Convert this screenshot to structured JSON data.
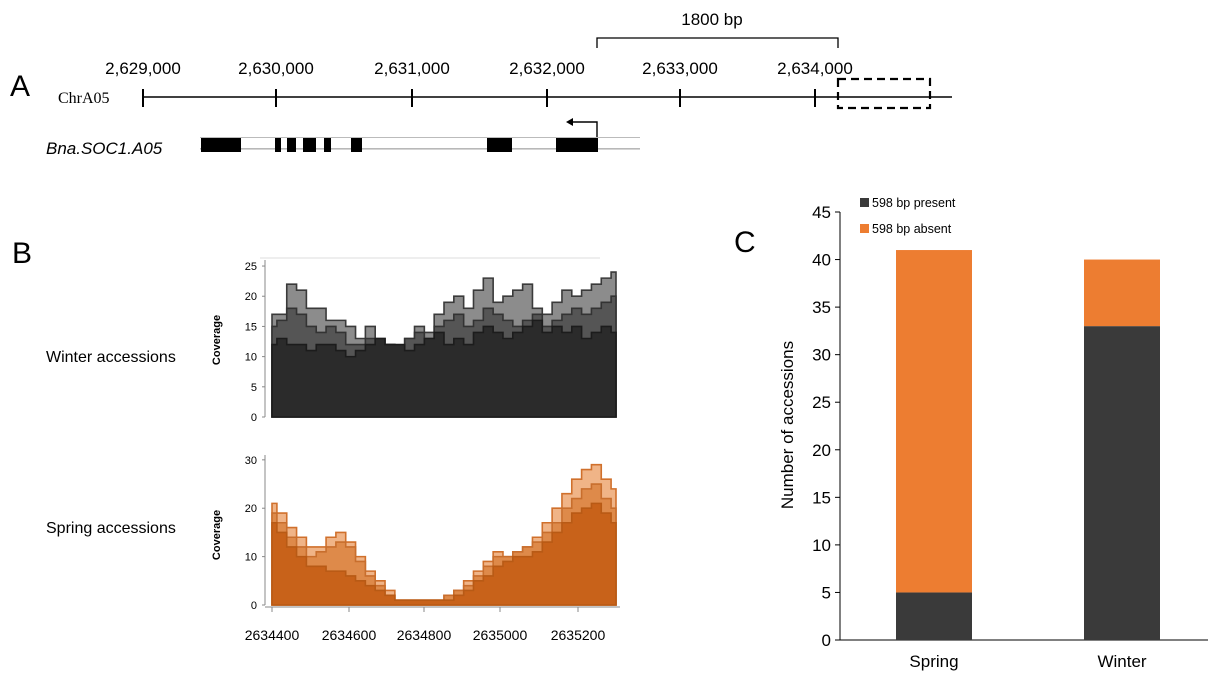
{
  "panel_a": {
    "letter": "A",
    "chromosome": "ChrA05",
    "scale_bar_label": "1800 bp",
    "ticks": [
      "2,629,000",
      "2,630,000",
      "2,631,000",
      "2,632,000",
      "2,633,000",
      "2,634,000"
    ],
    "gene_name": "Bna.SOC1.A05",
    "gene_strand": "reverse"
  },
  "panel_b": {
    "letter": "B",
    "winter_label": "Winter accessions",
    "spring_label": "Spring accessions",
    "x_ticks": [
      "2634400",
      "2634600",
      "2634800",
      "2635000",
      "2635200"
    ],
    "winter": {
      "ylabel": "Coverage",
      "yticks": [
        "0",
        "5",
        "10",
        "15",
        "20",
        "25"
      ],
      "ylim": [
        0,
        26
      ],
      "color": "#2b2b2b",
      "series": [
        {
          "values": [
            12,
            13,
            12,
            12,
            11,
            12,
            12,
            11,
            10,
            11,
            12,
            13,
            12,
            12,
            11,
            12,
            13,
            14,
            12,
            13,
            12,
            14,
            15,
            14,
            13,
            14,
            15,
            16,
            14,
            15,
            14,
            15,
            13,
            14,
            15,
            14
          ]
        },
        {
          "values": [
            15,
            16,
            18,
            17,
            15,
            14,
            15,
            14,
            12,
            12,
            13,
            12,
            12,
            11,
            13,
            14,
            13,
            15,
            16,
            17,
            15,
            16,
            18,
            17,
            16,
            15,
            16,
            17,
            15,
            16,
            17,
            18,
            17,
            18,
            19,
            20
          ]
        },
        {
          "values": [
            17,
            17,
            22,
            21,
            18,
            18,
            16,
            16,
            15,
            13,
            15,
            13,
            12,
            10,
            13,
            15,
            14,
            17,
            19,
            20,
            18,
            21,
            23,
            19,
            20,
            21,
            22,
            18,
            17,
            19,
            21,
            20,
            21,
            22,
            23,
            24
          ]
        }
      ]
    },
    "spring": {
      "ylabel": "Coverage",
      "yticks": [
        "0",
        "10",
        "20",
        "30"
      ],
      "ylim": [
        0,
        31
      ],
      "color": "#e07b2a",
      "series": [
        {
          "values": [
            17,
            15,
            12,
            10,
            8,
            8,
            7,
            7,
            6,
            5,
            4,
            3,
            2,
            1,
            1,
            1,
            1,
            1,
            1,
            2,
            3,
            5,
            6,
            8,
            9,
            10,
            10,
            11,
            13,
            15,
            17,
            19,
            20,
            21,
            19,
            17
          ]
        },
        {
          "values": [
            19,
            17,
            14,
            12,
            10,
            11,
            12,
            13,
            12,
            9,
            6,
            4,
            2,
            1,
            1,
            1,
            1,
            1,
            2,
            3,
            4,
            6,
            8,
            10,
            10,
            11,
            12,
            13,
            15,
            17,
            20,
            22,
            24,
            25,
            22,
            20
          ]
        },
        {
          "values": [
            21,
            19,
            16,
            14,
            12,
            12,
            14,
            15,
            13,
            10,
            7,
            5,
            3,
            1,
            1,
            1,
            1,
            1,
            2,
            3,
            5,
            7,
            9,
            11,
            10,
            11,
            12,
            14,
            17,
            20,
            23,
            26,
            28,
            29,
            26,
            24
          ]
        }
      ]
    }
  },
  "panel_c": {
    "letter": "C",
    "legend_present": "598 bp present",
    "legend_absent": "598 bp absent",
    "present_color": "#3a3a3a",
    "absent_color": "#ed7d31"
  },
  "chart_data": {
    "type": "bar",
    "stacked": true,
    "categories": [
      "Spring",
      "Winter"
    ],
    "series": [
      {
        "name": "598 bp present",
        "values": [
          5,
          33
        ]
      },
      {
        "name": "598 bp absent",
        "values": [
          36,
          7
        ]
      }
    ],
    "title": "",
    "xlabel": "",
    "ylabel": "Number of accessions",
    "ylim": [
      0,
      45
    ],
    "yticks": [
      "0",
      "5",
      "10",
      "15",
      "20",
      "25",
      "30",
      "35",
      "40",
      "45"
    ],
    "legend_position": "top-left"
  }
}
